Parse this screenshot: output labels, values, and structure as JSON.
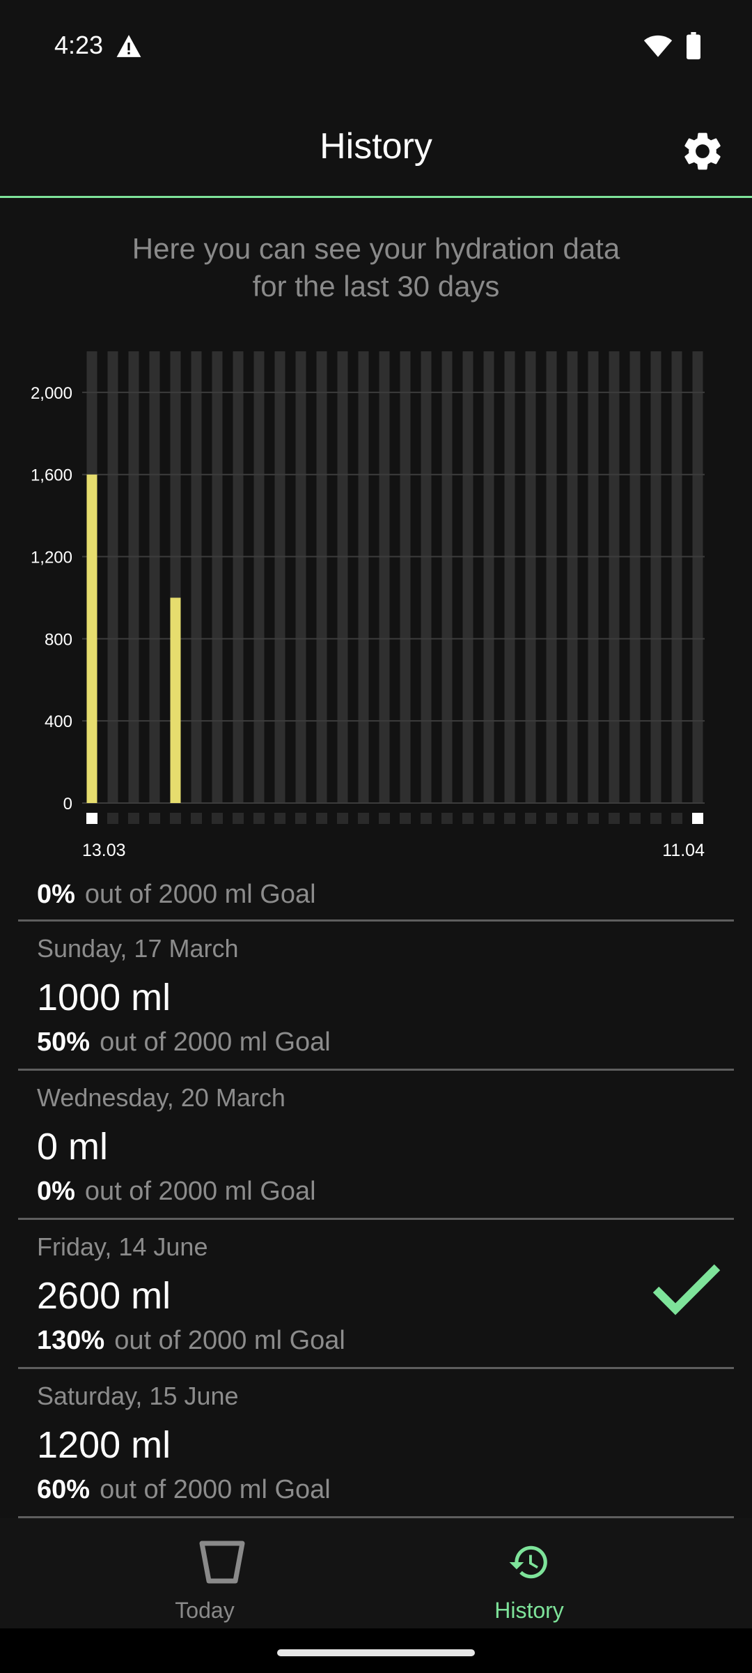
{
  "status_bar": {
    "time": "4:23",
    "icons": [
      "warning-icon",
      "wifi-icon",
      "battery-icon"
    ]
  },
  "app_bar": {
    "title": "History",
    "settings_icon": "gear-icon"
  },
  "intro": {
    "line1": "Here you can see your hydration data",
    "line2": "for the last 30 days"
  },
  "chart_data": {
    "type": "bar",
    "y_ticks": [
      "2,000",
      "1,600",
      "1,200",
      "800",
      "400",
      "0"
    ],
    "y_tick_values": [
      2000,
      1600,
      1200,
      800,
      400,
      0
    ],
    "ylim": [
      0,
      2200
    ],
    "x_start_label": "13.03",
    "x_end_label": "11.04",
    "bar_count": 30,
    "values": [
      1600,
      0,
      0,
      0,
      1000,
      0,
      0,
      0,
      0,
      0,
      0,
      0,
      0,
      0,
      0,
      0,
      0,
      0,
      0,
      0,
      0,
      0,
      0,
      0,
      0,
      0,
      0,
      0,
      0,
      0
    ],
    "grid": true,
    "colors": {
      "value": "#e6dd6e",
      "track": "#2f2f2f",
      "grid": "#3c3c3c",
      "axis_marker": "#ffffff",
      "inactive_marker": "#2a2a2a"
    }
  },
  "list": {
    "goal_text": "out of 2000 ml Goal",
    "partial_top_pct": "0%",
    "rows": [
      {
        "date": "Sunday, 17 March",
        "amount": "1000 ml",
        "pct": "50%",
        "achieved": false
      },
      {
        "date": "Wednesday, 20 March",
        "amount": "0 ml",
        "pct": "0%",
        "achieved": false
      },
      {
        "date": "Friday, 14 June",
        "amount": "2600 ml",
        "pct": "130%",
        "achieved": true
      },
      {
        "date": "Saturday, 15 June",
        "amount": "1200 ml",
        "pct": "60%",
        "achieved": false
      }
    ]
  },
  "bottom_nav": {
    "items": [
      {
        "label": "Today",
        "icon": "cup-icon",
        "active": false
      },
      {
        "label": "History",
        "icon": "history-icon",
        "active": true
      }
    ],
    "accent": "#7ee39a"
  }
}
